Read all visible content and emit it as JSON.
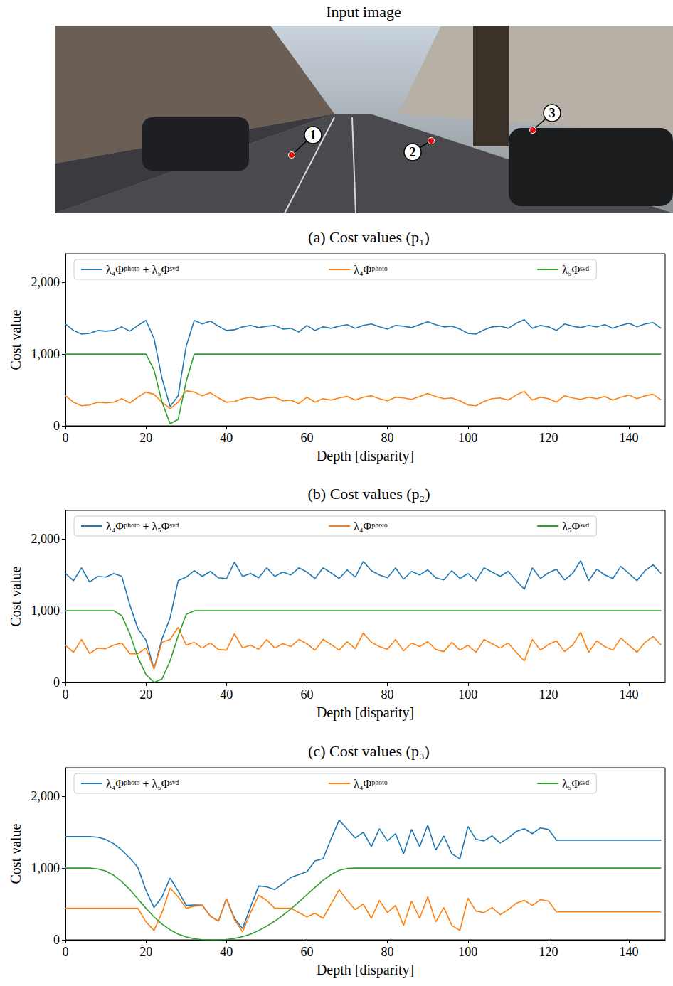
{
  "input_image": {
    "title": "Input image",
    "points": [
      "1",
      "2",
      "3"
    ]
  },
  "chart_data": [
    {
      "type": "line",
      "title": "(a) Cost values (p₁)",
      "x_label": "Depth [disparity]",
      "y_label": "Cost value",
      "xlim": [
        0,
        149
      ],
      "ylim": [
        0,
        2400
      ],
      "xticks": [
        0,
        20,
        40,
        60,
        80,
        100,
        120,
        140
      ],
      "yticks": [
        0,
        1000,
        2000
      ],
      "grid": false,
      "legend": "top",
      "x": [
        0,
        2,
        4,
        6,
        8,
        10,
        12,
        14,
        16,
        18,
        20,
        22,
        24,
        26,
        28,
        30,
        32,
        34,
        36,
        38,
        40,
        42,
        44,
        46,
        48,
        50,
        52,
        54,
        56,
        58,
        60,
        62,
        64,
        66,
        68,
        70,
        72,
        74,
        76,
        78,
        80,
        82,
        84,
        86,
        88,
        90,
        92,
        94,
        96,
        98,
        100,
        102,
        104,
        106,
        108,
        110,
        112,
        114,
        116,
        118,
        120,
        122,
        124,
        126,
        128,
        130,
        132,
        134,
        136,
        138,
        140,
        142,
        144,
        146,
        148
      ],
      "series": [
        {
          "name": "λ₄Φᵖʰᵒᵗᵒ + λ₅Φˢᵛᵈ",
          "color": "#1f77b4",
          "values": [
            1420,
            1330,
            1280,
            1290,
            1330,
            1320,
            1330,
            1380,
            1320,
            1400,
            1470,
            1220,
            660,
            270,
            420,
            1110,
            1470,
            1420,
            1460,
            1390,
            1330,
            1340,
            1380,
            1400,
            1370,
            1390,
            1400,
            1350,
            1360,
            1310,
            1400,
            1330,
            1380,
            1360,
            1390,
            1410,
            1360,
            1400,
            1420,
            1380,
            1350,
            1400,
            1390,
            1370,
            1410,
            1450,
            1410,
            1380,
            1390,
            1350,
            1290,
            1280,
            1340,
            1380,
            1390,
            1360,
            1430,
            1480,
            1360,
            1400,
            1380,
            1330,
            1420,
            1390,
            1370,
            1400,
            1380,
            1410,
            1360,
            1400,
            1430,
            1380,
            1420,
            1440,
            1360
          ]
        },
        {
          "name": "λ₄Φᵖʰᵒᵗᵒ",
          "color": "#ff7f0e",
          "values": [
            420,
            330,
            280,
            290,
            330,
            320,
            330,
            380,
            320,
            400,
            470,
            440,
            330,
            240,
            330,
            490,
            470,
            420,
            460,
            390,
            330,
            340,
            380,
            400,
            370,
            390,
            400,
            350,
            360,
            310,
            400,
            330,
            380,
            360,
            390,
            410,
            360,
            400,
            420,
            380,
            350,
            400,
            390,
            370,
            410,
            450,
            410,
            380,
            390,
            350,
            290,
            280,
            340,
            380,
            390,
            360,
            430,
            480,
            360,
            400,
            380,
            330,
            420,
            390,
            370,
            400,
            380,
            410,
            360,
            400,
            430,
            380,
            420,
            440,
            360
          ]
        },
        {
          "name": "λ₅Φˢᵛᵈ",
          "color": "#2ca02c",
          "values": [
            1000,
            1000,
            1000,
            1000,
            1000,
            1000,
            1000,
            1000,
            1000,
            1000,
            1000,
            780,
            330,
            30,
            90,
            620,
            1000,
            1000,
            1000,
            1000,
            1000,
            1000,
            1000,
            1000,
            1000,
            1000,
            1000,
            1000,
            1000,
            1000,
            1000,
            1000,
            1000,
            1000,
            1000,
            1000,
            1000,
            1000,
            1000,
            1000,
            1000,
            1000,
            1000,
            1000,
            1000,
            1000,
            1000,
            1000,
            1000,
            1000,
            1000,
            1000,
            1000,
            1000,
            1000,
            1000,
            1000,
            1000,
            1000,
            1000,
            1000,
            1000,
            1000,
            1000,
            1000,
            1000,
            1000,
            1000,
            1000,
            1000,
            1000,
            1000,
            1000,
            1000,
            1000
          ]
        }
      ]
    },
    {
      "type": "line",
      "title": "(b) Cost values (p₂)",
      "x_label": "Depth [disparity]",
      "y_label": "Cost value",
      "xlim": [
        0,
        149
      ],
      "ylim": [
        0,
        2400
      ],
      "xticks": [
        0,
        20,
        40,
        60,
        80,
        100,
        120,
        140
      ],
      "yticks": [
        0,
        1000,
        2000
      ],
      "grid": false,
      "legend": "top",
      "x": [
        0,
        2,
        4,
        6,
        8,
        10,
        12,
        14,
        16,
        18,
        20,
        22,
        24,
        26,
        28,
        30,
        32,
        34,
        36,
        38,
        40,
        42,
        44,
        46,
        48,
        50,
        52,
        54,
        56,
        58,
        60,
        62,
        64,
        66,
        68,
        70,
        72,
        74,
        76,
        78,
        80,
        82,
        84,
        86,
        88,
        90,
        92,
        94,
        96,
        98,
        100,
        102,
        104,
        106,
        108,
        110,
        112,
        114,
        116,
        118,
        120,
        122,
        124,
        126,
        128,
        130,
        132,
        134,
        136,
        138,
        140,
        142,
        144,
        146,
        148
      ],
      "series": [
        {
          "name": "λ₄Φᵖʰᵒᵗᵒ + λ₅Φˢᵛᵈ",
          "color": "#1f77b4",
          "values": [
            1520,
            1420,
            1600,
            1400,
            1480,
            1470,
            1520,
            1480,
            1080,
            750,
            590,
            190,
            610,
            900,
            1420,
            1470,
            1560,
            1480,
            1550,
            1460,
            1450,
            1680,
            1480,
            1520,
            1460,
            1600,
            1480,
            1540,
            1500,
            1600,
            1540,
            1450,
            1600,
            1530,
            1450,
            1570,
            1470,
            1690,
            1560,
            1500,
            1460,
            1600,
            1440,
            1550,
            1500,
            1570,
            1460,
            1430,
            1560,
            1450,
            1520,
            1420,
            1600,
            1540,
            1480,
            1550,
            1420,
            1300,
            1600,
            1450,
            1530,
            1580,
            1430,
            1520,
            1700,
            1420,
            1580,
            1500,
            1450,
            1620,
            1520,
            1420,
            1560,
            1640,
            1520
          ]
        },
        {
          "name": "λ₄Φᵖʰᵒᵗᵒ",
          "color": "#ff7f0e",
          "values": [
            520,
            420,
            600,
            400,
            480,
            470,
            520,
            550,
            400,
            400,
            480,
            190,
            560,
            600,
            770,
            520,
            560,
            480,
            550,
            460,
            450,
            680,
            480,
            520,
            460,
            600,
            480,
            540,
            500,
            600,
            540,
            450,
            600,
            530,
            450,
            570,
            470,
            690,
            560,
            500,
            460,
            600,
            440,
            550,
            500,
            570,
            460,
            430,
            560,
            450,
            520,
            420,
            600,
            540,
            480,
            550,
            420,
            300,
            600,
            450,
            530,
            580,
            430,
            520,
            700,
            420,
            580,
            500,
            450,
            620,
            520,
            420,
            560,
            640,
            520
          ]
        },
        {
          "name": "λ₅Φˢᵛᵈ",
          "color": "#2ca02c",
          "values": [
            1000,
            1000,
            1000,
            1000,
            1000,
            1000,
            1000,
            930,
            680,
            350,
            110,
            0,
            50,
            300,
            650,
            950,
            1000,
            1000,
            1000,
            1000,
            1000,
            1000,
            1000,
            1000,
            1000,
            1000,
            1000,
            1000,
            1000,
            1000,
            1000,
            1000,
            1000,
            1000,
            1000,
            1000,
            1000,
            1000,
            1000,
            1000,
            1000,
            1000,
            1000,
            1000,
            1000,
            1000,
            1000,
            1000,
            1000,
            1000,
            1000,
            1000,
            1000,
            1000,
            1000,
            1000,
            1000,
            1000,
            1000,
            1000,
            1000,
            1000,
            1000,
            1000,
            1000,
            1000,
            1000,
            1000,
            1000,
            1000,
            1000,
            1000,
            1000,
            1000,
            1000
          ]
        }
      ]
    },
    {
      "type": "line",
      "title": "(c) Cost values (p₃)",
      "x_label": "Depth [disparity]",
      "y_label": "Cost value",
      "xlim": [
        0,
        149
      ],
      "ylim": [
        0,
        2400
      ],
      "xticks": [
        0,
        20,
        40,
        60,
        80,
        100,
        120,
        140
      ],
      "yticks": [
        0,
        1000,
        2000
      ],
      "grid": false,
      "legend": "top",
      "x": [
        0,
        2,
        4,
        6,
        8,
        10,
        12,
        14,
        16,
        18,
        20,
        22,
        24,
        26,
        28,
        30,
        32,
        34,
        36,
        38,
        40,
        42,
        44,
        46,
        48,
        50,
        52,
        54,
        56,
        58,
        60,
        62,
        64,
        66,
        68,
        70,
        72,
        74,
        76,
        78,
        80,
        82,
        84,
        86,
        88,
        90,
        92,
        94,
        96,
        98,
        100,
        102,
        104,
        106,
        108,
        110,
        112,
        114,
        116,
        118,
        120,
        122,
        124,
        126,
        128,
        130,
        132,
        134,
        136,
        138,
        140,
        142,
        144,
        146,
        148
      ],
      "series": [
        {
          "name": "λ₄Φᵖʰᵒᵗᵒ + λ₅Φˢᵛᵈ",
          "color": "#1f77b4",
          "values": [
            1440,
            1440,
            1440,
            1440,
            1430,
            1400,
            1340,
            1250,
            1140,
            1010,
            690,
            450,
            600,
            860,
            680,
            480,
            485,
            483,
            330,
            260,
            575,
            300,
            155,
            460,
            750,
            740,
            700,
            780,
            870,
            910,
            950,
            1100,
            1130,
            1410,
            1670,
            1545,
            1420,
            1500,
            1300,
            1550,
            1380,
            1480,
            1200,
            1540,
            1300,
            1600,
            1250,
            1450,
            1200,
            1130,
            1580,
            1400,
            1380,
            1450,
            1350,
            1420,
            1510,
            1550,
            1480,
            1560,
            1540,
            1390,
            1390,
            1390,
            1390,
            1390,
            1390,
            1390,
            1390,
            1390,
            1390,
            1390,
            1390,
            1390,
            1390
          ]
        },
        {
          "name": "λ₄Φᵖʰᵒᵗᵒ",
          "color": "#ff7f0e",
          "values": [
            440,
            440,
            440,
            440,
            440,
            440,
            440,
            440,
            440,
            440,
            250,
            130,
            380,
            720,
            600,
            440,
            470,
            480,
            330,
            260,
            570,
            280,
            110,
            380,
            620,
            550,
            440,
            440,
            440,
            380,
            320,
            370,
            300,
            500,
            700,
            550,
            420,
            500,
            300,
            550,
            380,
            480,
            200,
            540,
            300,
            600,
            250,
            450,
            200,
            130,
            580,
            400,
            380,
            450,
            350,
            420,
            510,
            550,
            480,
            560,
            540,
            390,
            390,
            390,
            390,
            390,
            390,
            390,
            390,
            390,
            390,
            390,
            390,
            390,
            390
          ]
        },
        {
          "name": "λ₅Φˢᵛᵈ",
          "color": "#2ca02c",
          "values": [
            1000,
            1000,
            1000,
            1000,
            990,
            960,
            900,
            810,
            700,
            570,
            440,
            320,
            220,
            140,
            80,
            40,
            15,
            3,
            0,
            0,
            5,
            20,
            45,
            80,
            130,
            190,
            260,
            340,
            430,
            530,
            630,
            730,
            830,
            910,
            970,
            995,
            1000,
            1000,
            1000,
            1000,
            1000,
            1000,
            1000,
            1000,
            1000,
            1000,
            1000,
            1000,
            1000,
            1000,
            1000,
            1000,
            1000,
            1000,
            1000,
            1000,
            1000,
            1000,
            1000,
            1000,
            1000,
            1000,
            1000,
            1000,
            1000,
            1000,
            1000,
            1000,
            1000,
            1000,
            1000,
            1000,
            1000,
            1000,
            1000
          ]
        }
      ]
    }
  ]
}
